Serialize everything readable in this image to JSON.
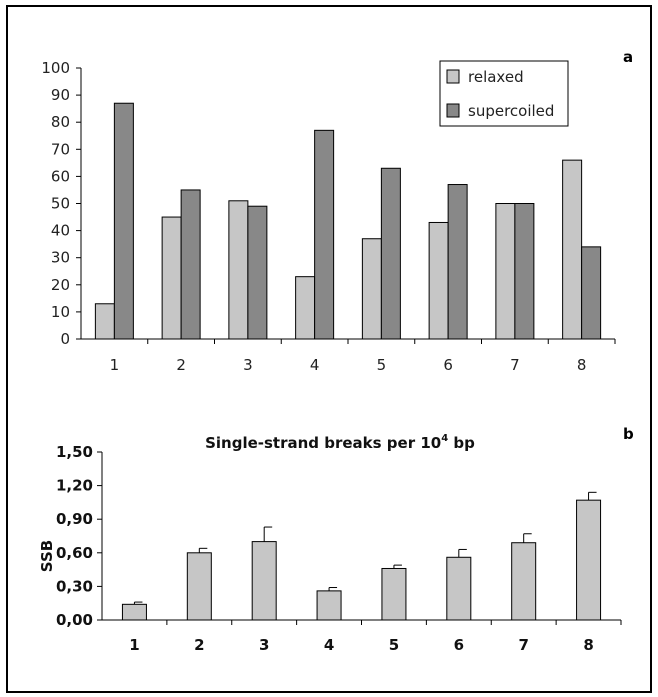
{
  "chart_data": [
    {
      "type": "bar",
      "panel_label": "a",
      "categories": [
        "1",
        "2",
        "3",
        "4",
        "5",
        "6",
        "7",
        "8"
      ],
      "series": [
        {
          "name": "relaxed",
          "color": "#c6c6c6",
          "values": [
            13,
            45,
            51,
            23,
            37,
            43,
            50,
            66
          ]
        },
        {
          "name": "supercoiled",
          "color": "#888888",
          "values": [
            87,
            55,
            49,
            77,
            63,
            57,
            50,
            34
          ]
        }
      ],
      "yticks": [
        "0",
        "10",
        "20",
        "30",
        "40",
        "50",
        "60",
        "70",
        "80",
        "90",
        "100"
      ],
      "ylim": [
        0,
        100
      ],
      "legend": "top-right",
      "grid": false
    },
    {
      "type": "bar",
      "panel_label": "b",
      "title": "Single-strand breaks per 10",
      "title_superscript": "4",
      "title_suffix": " bp",
      "ylabel": "SSB",
      "categories": [
        "1",
        "2",
        "3",
        "4",
        "5",
        "6",
        "7",
        "8"
      ],
      "values": [
        0.14,
        0.6,
        0.7,
        0.26,
        0.46,
        0.56,
        0.69,
        1.07
      ],
      "errors": [
        0.02,
        0.04,
        0.13,
        0.03,
        0.03,
        0.07,
        0.08,
        0.07
      ],
      "bar_color": "#c6c6c6",
      "yticks": [
        "0,00",
        "0,30",
        "0,60",
        "0,90",
        "1,20",
        "1,50"
      ],
      "ylim": [
        0,
        1.5
      ],
      "legend": "none",
      "grid": false
    }
  ]
}
